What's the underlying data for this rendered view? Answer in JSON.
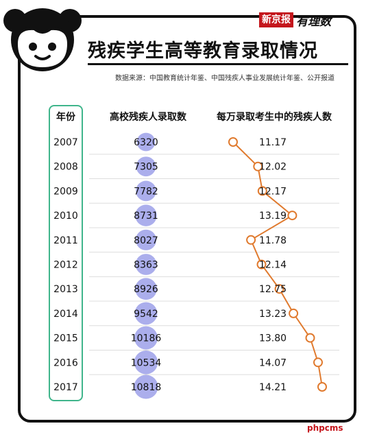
{
  "header": {
    "brand_paper": "新京报",
    "brand_column": "有理数",
    "title": "残疾学生高等教育录取情况",
    "source": "数据来源：中国教育统计年鉴、中国残疾人事业发展统计年鉴、公开报道"
  },
  "columns": {
    "year": "年份",
    "admitted": "高校残疾人录取数",
    "per_10k": "每万录取考生中的残疾人数"
  },
  "watermark": "phpcms",
  "colors": {
    "bubble": "#8f93e6",
    "line": "#e07a2e",
    "year_box": "#3fb58b",
    "brand": "#c4161c"
  },
  "chart_data": {
    "type": "table",
    "rows": [
      {
        "year": "2007",
        "admitted": 6320,
        "per_10k": 11.17
      },
      {
        "year": "2008",
        "admitted": 7305,
        "per_10k": 12.02
      },
      {
        "year": "2009",
        "admitted": 7782,
        "per_10k": 12.17
      },
      {
        "year": "2010",
        "admitted": 8731,
        "per_10k": 13.19
      },
      {
        "year": "2011",
        "admitted": 8027,
        "per_10k": 11.78
      },
      {
        "year": "2012",
        "admitted": 8363,
        "per_10k": 12.14
      },
      {
        "year": "2013",
        "admitted": 8926,
        "per_10k": 12.75
      },
      {
        "year": "2014",
        "admitted": 9542,
        "per_10k": 13.23
      },
      {
        "year": "2015",
        "admitted": 10186,
        "per_10k": 13.8
      },
      {
        "year": "2016",
        "admitted": 10534,
        "per_10k": 14.07
      },
      {
        "year": "2017",
        "admitted": 10818,
        "per_10k": 14.21
      }
    ],
    "per_10k_labels": [
      "11.17",
      "12.02",
      "12.17",
      "13.19",
      "11.78",
      "12.14",
      "12.75",
      "13.23",
      "13.80",
      "14.07",
      "14.21"
    ],
    "admitted_encoding": "bubble size",
    "per_10k_encoding": "line with circular markers"
  }
}
